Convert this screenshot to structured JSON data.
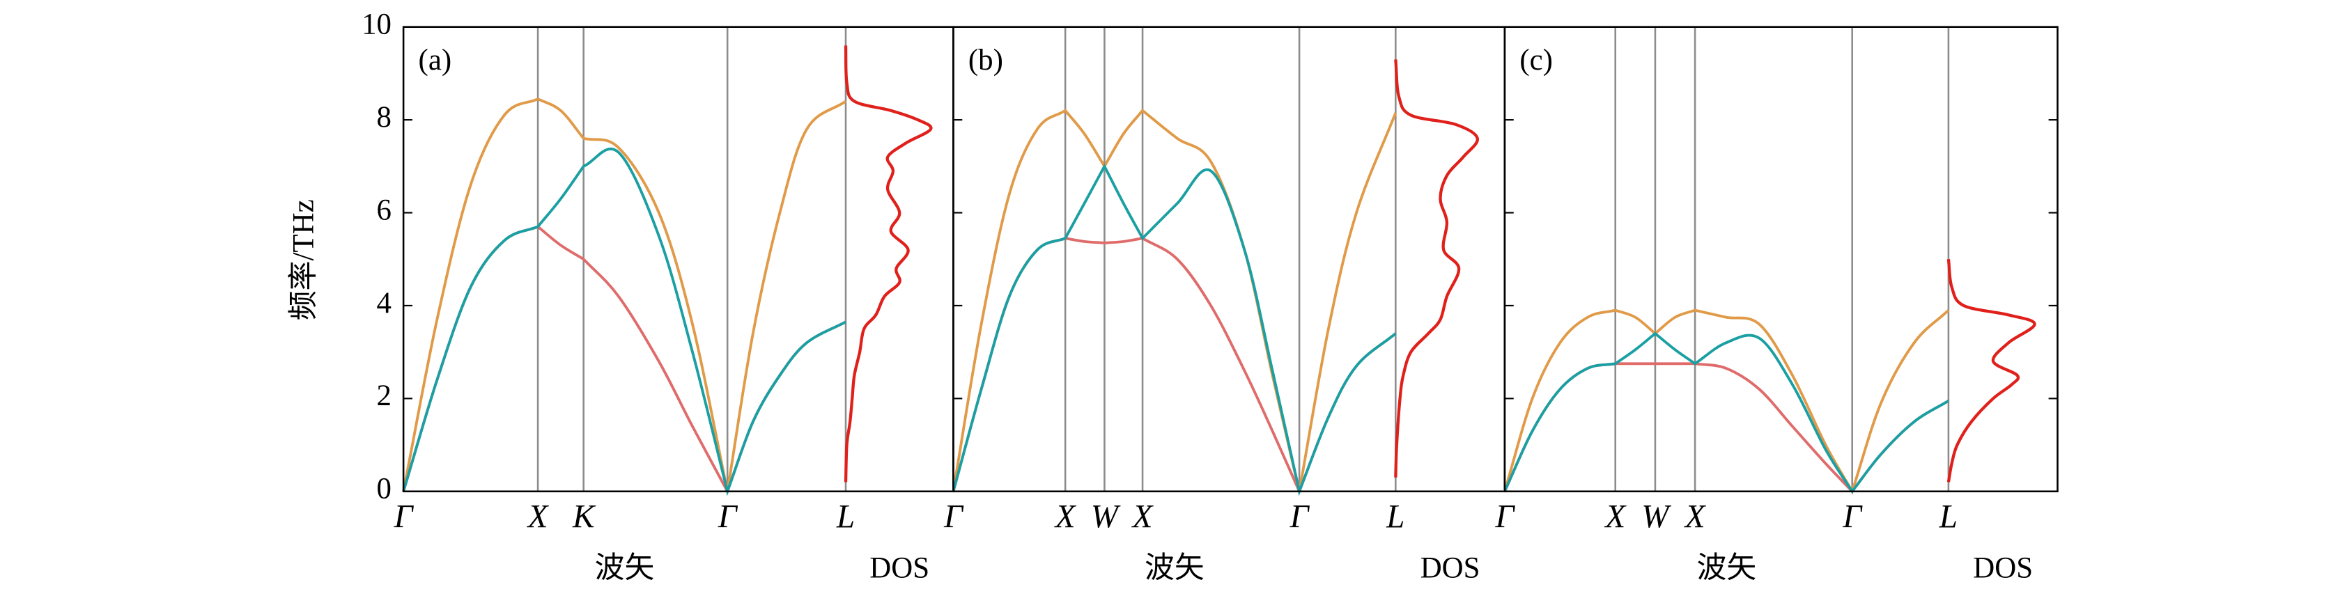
{
  "chart_data": {
    "type": "line",
    "ylabel": "频率/THz",
    "ylim": [
      0,
      10
    ],
    "yticks": [
      0,
      2,
      4,
      6,
      8,
      10
    ],
    "panels": [
      {
        "label": "(a)",
        "xlabel": "波矢",
        "dos_label": "DOS",
        "xlim": [
          0,
          3.29
        ],
        "xticks": [
          {
            "value": 0,
            "label": "Γ"
          },
          {
            "value": 1,
            "label": "X"
          },
          {
            "value": 1.34,
            "label": "K"
          },
          {
            "value": 2.41,
            "label": "Γ"
          },
          {
            "value": 3.29,
            "label": "L"
          }
        ],
        "x": [
          0,
          0.25,
          0.5,
          0.75,
          1,
          1.17,
          1.34,
          1.6,
          1.9,
          2.15,
          2.41,
          2.6,
          2.8,
          3.0,
          3.29
        ],
        "series": [
          {
            "color": "#e06b6b",
            "values": [
              0,
              2.4,
              4.4,
              5.4,
              5.7,
              5.3,
              5.0,
              4.2,
              2.8,
              1.4,
              0,
              1.5,
              2.5,
              3.2,
              3.65
            ]
          },
          {
            "color": "#e09a48",
            "values": [
              0,
              3.7,
              6.6,
              8.1,
              8.45,
              8.2,
              7.6,
              7.4,
              6.0,
              3.6,
              0,
              3.4,
              6.0,
              7.8,
              8.4
            ]
          },
          {
            "color": "#1a9fa3",
            "values": [
              0,
              2.4,
              4.4,
              5.4,
              5.7,
              6.3,
              7.0,
              7.3,
              5.5,
              3.0,
              0,
              1.5,
              2.5,
              3.2,
              3.65
            ]
          }
        ],
        "dos": {
          "color": "#e0201a",
          "xlim": [
            0,
            1
          ],
          "frequency": [
            0.2,
            1,
            1.5,
            2,
            2.5,
            3,
            3.5,
            3.8,
            4.2,
            4.5,
            4.8,
            5.2,
            5.6,
            6.0,
            6.5,
            6.9,
            7.2,
            7.5,
            7.8,
            8.0,
            8.2,
            8.4,
            8.8,
            9.6
          ],
          "density": [
            0,
            0.01,
            0.04,
            0.06,
            0.08,
            0.13,
            0.17,
            0.28,
            0.36,
            0.5,
            0.47,
            0.58,
            0.42,
            0.5,
            0.39,
            0.44,
            0.39,
            0.56,
            0.79,
            0.67,
            0.42,
            0.08,
            0.01,
            0
          ]
        }
      },
      {
        "label": "(b)",
        "xlabel": "波矢",
        "dos_label": "DOS",
        "xlim": [
          0,
          3.95
        ],
        "xticks": [
          {
            "value": 0,
            "label": "Γ"
          },
          {
            "value": 1,
            "label": "X"
          },
          {
            "value": 1.35,
            "label": "W"
          },
          {
            "value": 1.69,
            "label": "X"
          },
          {
            "value": 3.09,
            "label": "Γ"
          },
          {
            "value": 3.95,
            "label": "L"
          }
        ],
        "x": [
          0,
          0.25,
          0.5,
          0.75,
          1,
          1.17,
          1.35,
          1.52,
          1.69,
          2.0,
          2.3,
          2.6,
          2.85,
          3.09,
          3.35,
          3.6,
          3.95
        ],
        "series": [
          {
            "color": "#e06b6b",
            "values": [
              0,
              2.2,
              4.2,
              5.2,
              5.45,
              5.38,
              5.35,
              5.38,
              5.45,
              5.0,
              4.0,
              2.6,
              1.3,
              0,
              1.6,
              2.7,
              3.4
            ]
          },
          {
            "color": "#e09a48",
            "values": [
              0,
              3.6,
              6.4,
              7.8,
              8.2,
              7.7,
              7.0,
              7.7,
              8.2,
              7.6,
              7.1,
              5.2,
              2.5,
              0,
              3.5,
              6.0,
              8.15
            ]
          },
          {
            "color": "#1a9fa3",
            "values": [
              0,
              2.2,
              4.2,
              5.2,
              5.45,
              6.2,
              7.0,
              6.2,
              5.45,
              6.2,
              6.9,
              5.2,
              2.6,
              0,
              1.6,
              2.7,
              3.4
            ]
          }
        ],
        "dos": {
          "color": "#e0201a",
          "xlim": [
            0,
            1
          ],
          "frequency": [
            0.3,
            1,
            2,
            2.5,
            3,
            3.4,
            3.7,
            4.2,
            4.8,
            5.2,
            5.8,
            6.3,
            6.8,
            7.2,
            7.6,
            7.9,
            8.1,
            8.5,
            9.3
          ],
          "density": [
            0,
            0.01,
            0.04,
            0.07,
            0.14,
            0.3,
            0.41,
            0.47,
            0.58,
            0.44,
            0.47,
            0.41,
            0.47,
            0.62,
            0.75,
            0.55,
            0.14,
            0.03,
            0
          ]
        }
      },
      {
        "label": "(c)",
        "xlabel": "波矢",
        "dos_label": "DOS",
        "xlim": [
          0,
          4.01
        ],
        "xticks": [
          {
            "value": 0,
            "label": "Γ"
          },
          {
            "value": 1,
            "label": "X"
          },
          {
            "value": 1.36,
            "label": "W"
          },
          {
            "value": 1.72,
            "label": "X"
          },
          {
            "value": 3.14,
            "label": "Γ"
          },
          {
            "value": 4.01,
            "label": "L"
          }
        ],
        "x": [
          0,
          0.25,
          0.5,
          0.75,
          1,
          1.18,
          1.36,
          1.54,
          1.72,
          2.0,
          2.3,
          2.6,
          2.9,
          3.14,
          3.4,
          3.7,
          4.01
        ],
        "series": [
          {
            "color": "#e06b6b",
            "values": [
              0,
              1.3,
              2.2,
              2.65,
              2.75,
              2.75,
              2.75,
              2.75,
              2.75,
              2.65,
              2.2,
              1.4,
              0.6,
              0,
              0.8,
              1.5,
              1.95
            ]
          },
          {
            "color": "#e09a48",
            "values": [
              0,
              2.0,
              3.2,
              3.75,
              3.9,
              3.75,
              3.4,
              3.75,
              3.9,
              3.75,
              3.6,
              2.5,
              1.0,
              0,
              1.9,
              3.2,
              3.9
            ]
          },
          {
            "color": "#1a9fa3",
            "values": [
              0,
              1.3,
              2.2,
              2.65,
              2.75,
              3.05,
              3.4,
              3.05,
              2.75,
              3.2,
              3.3,
              2.3,
              0.9,
              0,
              0.8,
              1.5,
              1.95
            ]
          }
        ],
        "dos": {
          "color": "#e0201a",
          "xlim": [
            0,
            1
          ],
          "frequency": [
            0.2,
            0.6,
            1,
            1.5,
            2,
            2.3,
            2.5,
            2.8,
            3.2,
            3.6,
            3.8,
            4.0,
            4.4,
            5.0
          ],
          "density": [
            0,
            0.03,
            0.08,
            0.21,
            0.41,
            0.58,
            0.63,
            0.41,
            0.55,
            0.79,
            0.55,
            0.14,
            0.03,
            0
          ]
        }
      }
    ]
  }
}
